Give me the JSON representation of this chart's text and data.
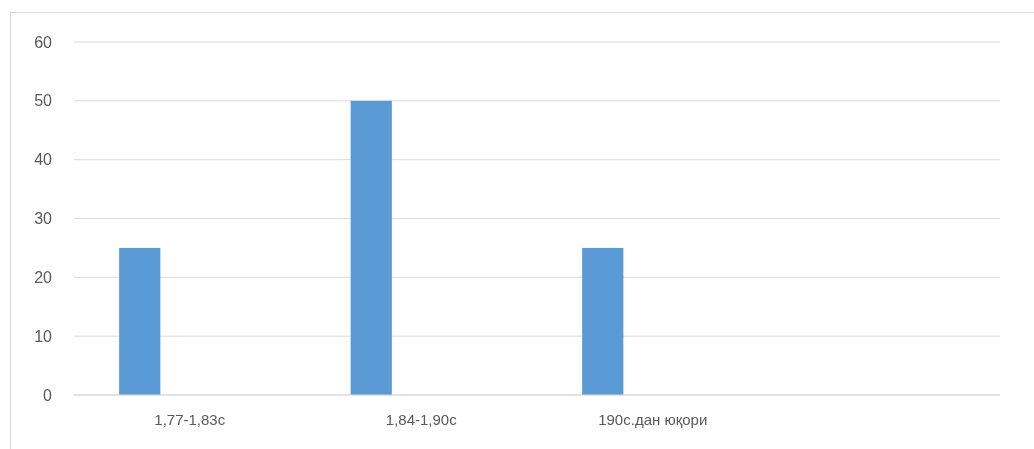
{
  "chart_data": {
    "type": "bar",
    "categories": [
      "1,77-1,83с",
      "1,84-1,90с",
      "190с.дан юқори",
      null
    ],
    "values": [
      25,
      50,
      25,
      null
    ],
    "color": "#5b9bd5",
    "ylim": [
      0,
      60
    ],
    "yticks": [
      0,
      10,
      20,
      30,
      40,
      50,
      60
    ],
    "grid": "y"
  }
}
